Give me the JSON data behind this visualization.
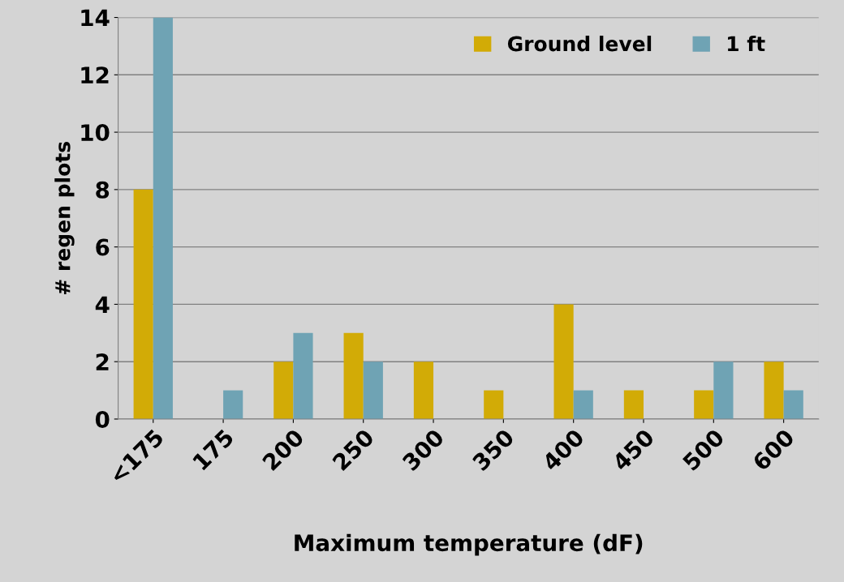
{
  "chart_data": {
    "type": "bar",
    "xlabel": "Maximum temperature (dF)",
    "ylabel": "# regen plots",
    "categories": [
      "<175",
      "175",
      "200",
      "250",
      "300",
      "350",
      "400",
      "450",
      "500",
      "600"
    ],
    "series": [
      {
        "name": "Ground level",
        "color": "#d2ab06",
        "values": [
          8,
          0,
          2,
          3,
          2,
          1,
          4,
          1,
          1,
          2
        ]
      },
      {
        "name": "1 ft",
        "color": "#6fa3b4",
        "values": [
          14,
          1,
          3,
          2,
          0,
          0,
          1,
          0,
          2,
          1
        ]
      }
    ],
    "ylim": [
      0,
      14
    ],
    "yticks": [
      0,
      2,
      4,
      6,
      8,
      10,
      12,
      14
    ],
    "grid": "y",
    "legend": "top right"
  }
}
